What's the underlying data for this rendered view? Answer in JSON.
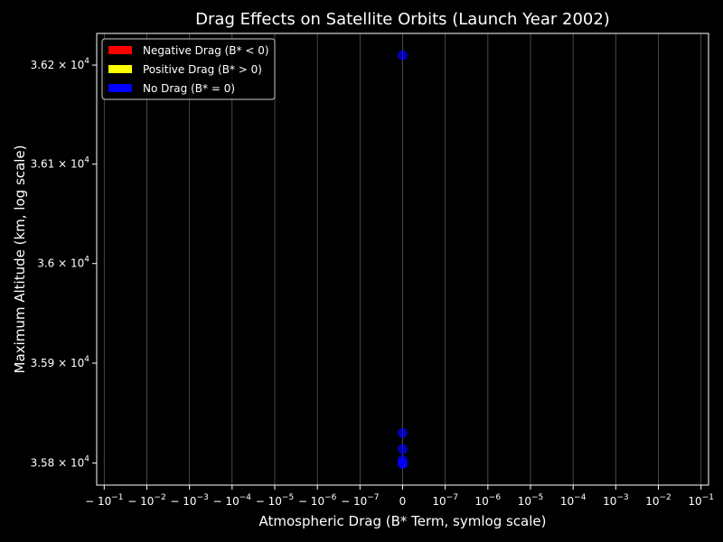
{
  "chart_data": {
    "type": "scatter",
    "title": "Drag Effects on Satellite Orbits (Launch Year 2002)",
    "xlabel": "Atmospheric Drag (B* Term, symlog scale)",
    "ylabel": "Maximum Altitude (km, log scale)",
    "xscale": "symlog",
    "yscale": "log",
    "x_ticks": [
      {
        "value": -0.1,
        "base": "− 10",
        "exp": "−1"
      },
      {
        "value": -0.01,
        "base": "− 10",
        "exp": "−2"
      },
      {
        "value": -0.001,
        "base": "− 10",
        "exp": "−3"
      },
      {
        "value": -0.0001,
        "base": "− 10",
        "exp": "−4"
      },
      {
        "value": -1e-05,
        "base": "− 10",
        "exp": "−5"
      },
      {
        "value": -1e-06,
        "base": "− 10",
        "exp": "−6"
      },
      {
        "value": -1e-07,
        "base": "− 10",
        "exp": "−7"
      },
      {
        "value": 0,
        "base": "0",
        "exp": ""
      },
      {
        "value": 1e-07,
        "base": "10",
        "exp": "−7"
      },
      {
        "value": 1e-06,
        "base": "10",
        "exp": "−6"
      },
      {
        "value": 1e-05,
        "base": "10",
        "exp": "−5"
      },
      {
        "value": 0.0001,
        "base": "10",
        "exp": "−4"
      },
      {
        "value": 0.001,
        "base": "10",
        "exp": "−3"
      },
      {
        "value": 0.01,
        "base": "10",
        "exp": "−2"
      },
      {
        "value": 0.1,
        "base": "10",
        "exp": "−1"
      }
    ],
    "y_ticks": [
      {
        "value": 35800,
        "base": "3.58 × 10",
        "exp": "4"
      },
      {
        "value": 35900,
        "base": "3.59 × 10",
        "exp": "4"
      },
      {
        "value": 36000,
        "base": "3.6 × 10",
        "exp": "4"
      },
      {
        "value": 36100,
        "base": "3.61 × 10",
        "exp": "4"
      },
      {
        "value": 36200,
        "base": "3.62 × 10",
        "exp": "4"
      }
    ],
    "xlim": [
      -0.15,
      0.15
    ],
    "ylim": [
      35778,
      36232
    ],
    "grid": "vertical",
    "legend": {
      "placement": "top-left",
      "entries": [
        {
          "label": "Negative Drag (B* < 0)",
          "color": "#ff0000"
        },
        {
          "label": "Positive Drag (B* > 0)",
          "color": "#ffff00"
        },
        {
          "label": "No Drag (B* = 0)",
          "color": "#0000ff"
        }
      ]
    },
    "series": [
      {
        "name": "No Drag (B* = 0)",
        "color": "#0000ff",
        "points": [
          {
            "x": 0,
            "y": 36210
          },
          {
            "x": 0,
            "y": 35830
          },
          {
            "x": 0,
            "y": 35814
          },
          {
            "x": 0,
            "y": 35803
          },
          {
            "x": 0,
            "y": 35800
          },
          {
            "x": 0,
            "y": 35799
          }
        ]
      }
    ]
  }
}
